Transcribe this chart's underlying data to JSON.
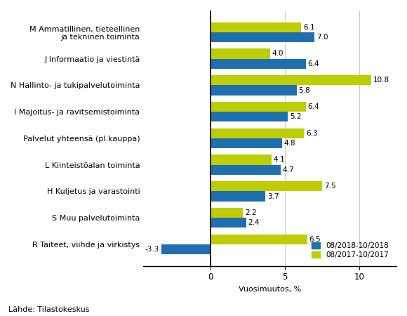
{
  "categories": [
    "M Ammatillinen, tieteellinen\nja tekninen toiminta",
    "J Informaatio ja viestintä",
    "N Hallinto- ja tukipalvelutoiminta",
    "I Majoitus- ja ravitsemistoiminta",
    "Palvelut yhteensä (pl.kauppa)",
    "L Kiinteistöalan toiminta",
    "H Kuljetus ja varastointi",
    "S Muu palvelutoiminta",
    "R Taiteet, viihde ja virkistys"
  ],
  "series1_label": "08/2018-10/2018",
  "series2_label": "08/2017-10/2017",
  "series1_values": [
    7.0,
    6.4,
    5.8,
    5.2,
    4.8,
    4.7,
    3.7,
    2.4,
    -3.3
  ],
  "series2_values": [
    6.1,
    4.0,
    10.8,
    6.4,
    6.3,
    4.1,
    7.5,
    2.2,
    6.5
  ],
  "color1": "#1F6FAE",
  "color2": "#BECD00",
  "xlabel": "Vuosimuutos, %",
  "footer": "Lähde: Tilastokeskus",
  "xlim": [
    -4.5,
    12.5
  ],
  "xticks": [
    0,
    5,
    10
  ],
  "bar_height": 0.38,
  "background_color": "#ffffff",
  "grid_color": "#cccccc",
  "label_fontsize": 8.0,
  "tick_fontsize": 8.5,
  "value_fontsize": 7.5
}
